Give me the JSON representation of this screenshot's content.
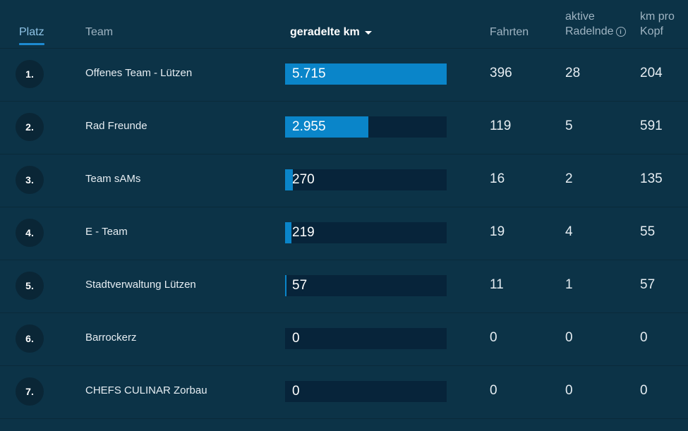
{
  "header": {
    "platz": "Platz",
    "team": "Team",
    "km": "geradelte km",
    "fahrten": "Fahrten",
    "aktive_line1": "aktive",
    "aktive_line2": "Radelnde",
    "km_pro_line1": "km pro",
    "km_pro_line2": "Kopf"
  },
  "accent_color": "#0a85c9",
  "rows": [
    {
      "rank": "1.",
      "team": "Offenes Team - Lützen",
      "km": "5.715",
      "km_value": 5715,
      "fahrten": "396",
      "aktive": "28",
      "km_pro_kopf": "204"
    },
    {
      "rank": "2.",
      "team": "Rad Freunde",
      "km": "2.955",
      "km_value": 2955,
      "fahrten": "119",
      "aktive": "5",
      "km_pro_kopf": "591"
    },
    {
      "rank": "3.",
      "team": "Team sAMs",
      "km": "270",
      "km_value": 270,
      "fahrten": "16",
      "aktive": "2",
      "km_pro_kopf": "135"
    },
    {
      "rank": "4.",
      "team": "E - Team",
      "km": "219",
      "km_value": 219,
      "fahrten": "19",
      "aktive": "4",
      "km_pro_kopf": "55"
    },
    {
      "rank": "5.",
      "team": "Stadtverwaltung Lützen",
      "km": "57",
      "km_value": 57,
      "fahrten": "11",
      "aktive": "1",
      "km_pro_kopf": "57"
    },
    {
      "rank": "6.",
      "team": "Barrockerz",
      "km": "0",
      "km_value": 0,
      "fahrten": "0",
      "aktive": "0",
      "km_pro_kopf": "0"
    },
    {
      "rank": "7.",
      "team": "CHEFS CULINAR Zorbau",
      "km": "0",
      "km_value": 0,
      "fahrten": "0",
      "aktive": "0",
      "km_pro_kopf": "0"
    }
  ]
}
